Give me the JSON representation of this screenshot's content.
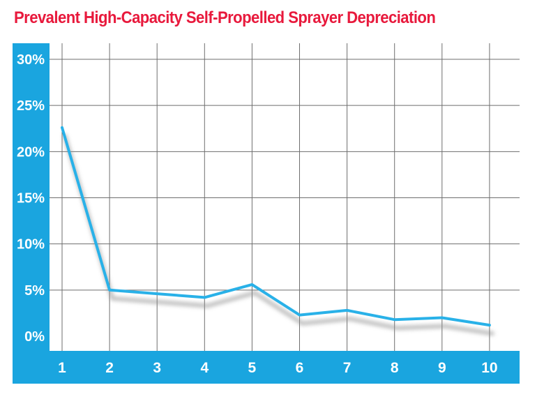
{
  "colors": {
    "title": "#e8193c",
    "axis_band": "#1aa5df",
    "line": "#29b1e8",
    "grid": "#6e6e6e"
  },
  "chart_data": {
    "type": "line",
    "title": "Prevalent High-Capacity Self-Propelled Sprayer Depreciation",
    "xlabel": "",
    "ylabel": "",
    "x": [
      1,
      2,
      3,
      4,
      5,
      6,
      7,
      8,
      9,
      10
    ],
    "series": [
      {
        "values": [
          22.6,
          5.0,
          4.6,
          4.2,
          5.6,
          2.3,
          2.8,
          1.8,
          2.0,
          1.2
        ]
      }
    ],
    "x_tick_labels": [
      "1",
      "2",
      "3",
      "4",
      "5",
      "6",
      "7",
      "8",
      "9",
      "10"
    ],
    "y_tick_labels": [
      "0%",
      "5%",
      "10%",
      "15%",
      "20%",
      "25%",
      "30%"
    ],
    "ylim": [
      0,
      30
    ],
    "grid": true,
    "legend": "none"
  }
}
